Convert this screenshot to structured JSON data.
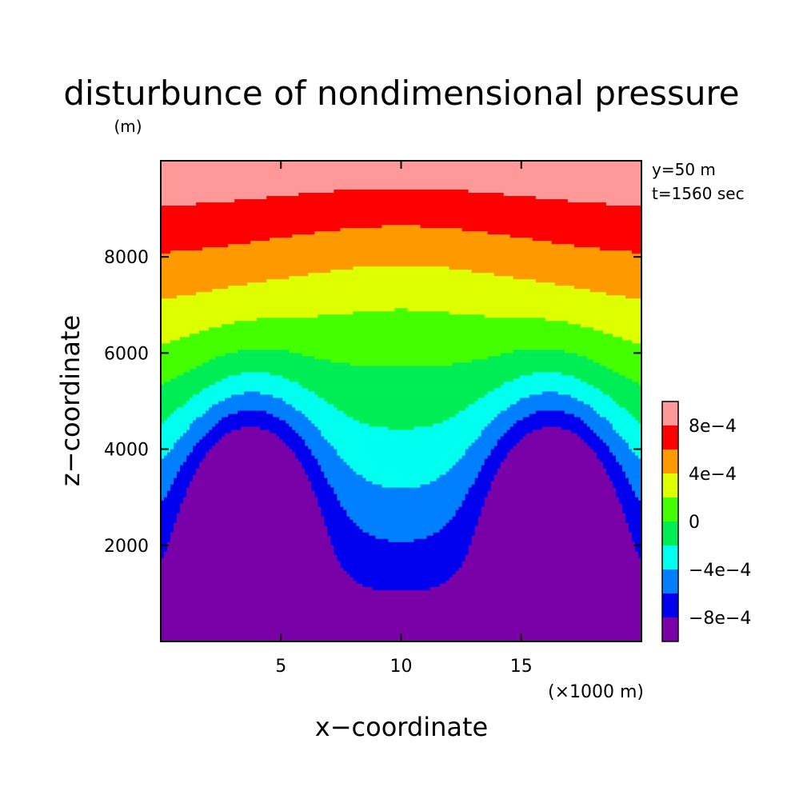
{
  "chart_data": {
    "type": "contour",
    "title": "disturbunce of nondimensional pressure",
    "ylabel": "z−coordinate",
    "yunit": "(m)",
    "xlabel": "x−coordinate",
    "xunit": "(×1000 m)",
    "xlim": [
      0,
      20
    ],
    "ylim": [
      0,
      10000
    ],
    "x_ticks": [
      {
        "value": 5,
        "label": "5"
      },
      {
        "value": 10,
        "label": "10"
      },
      {
        "value": 15,
        "label": "15"
      }
    ],
    "y_ticks": [
      {
        "value": 2000,
        "label": "2000"
      },
      {
        "value": 4000,
        "label": "4000"
      },
      {
        "value": 6000,
        "label": "6000"
      },
      {
        "value": 8000,
        "label": "8000"
      }
    ],
    "annotations": [
      "y=50 m",
      "t=1560 sec"
    ],
    "levels": [
      -0.001,
      -0.0008,
      -0.0006,
      -0.0004,
      -0.0002,
      0,
      0.0002,
      0.0004,
      0.0006,
      0.0008,
      0.001
    ],
    "colorbar": {
      "colors": [
        "#7a00a8",
        "#0000ee",
        "#0080ff",
        "#00ffee",
        "#00ee55",
        "#44ff00",
        "#ddff00",
        "#ff9900",
        "#ff0000",
        "#ff9999"
      ],
      "labels": [
        {
          "value": -0.0008,
          "label": "−8e−4"
        },
        {
          "value": -0.0004,
          "label": "−4e−4"
        },
        {
          "value": 0,
          "label": "0"
        },
        {
          "value": 0.0004,
          "label": "4e−4"
        },
        {
          "value": 0.0008,
          "label": "8e−4"
        }
      ]
    },
    "field_model": {
      "background": {
        "a": 9e-05,
        "b": 0.00045,
        "c": 0.0004,
        "d": 0.000175
      },
      "valley_x_km": 10,
      "valley_width_km": 4.5,
      "anomalies": [
        {
          "x_km": 3.7,
          "z_m": 2800,
          "amp": -0.0011,
          "sx_km": 1.9,
          "sz_m": 1650
        },
        {
          "x_km": 16.3,
          "z_m": 2800,
          "amp": -0.0011,
          "sx_km": 1.9,
          "sz_m": 1650
        }
      ]
    }
  }
}
